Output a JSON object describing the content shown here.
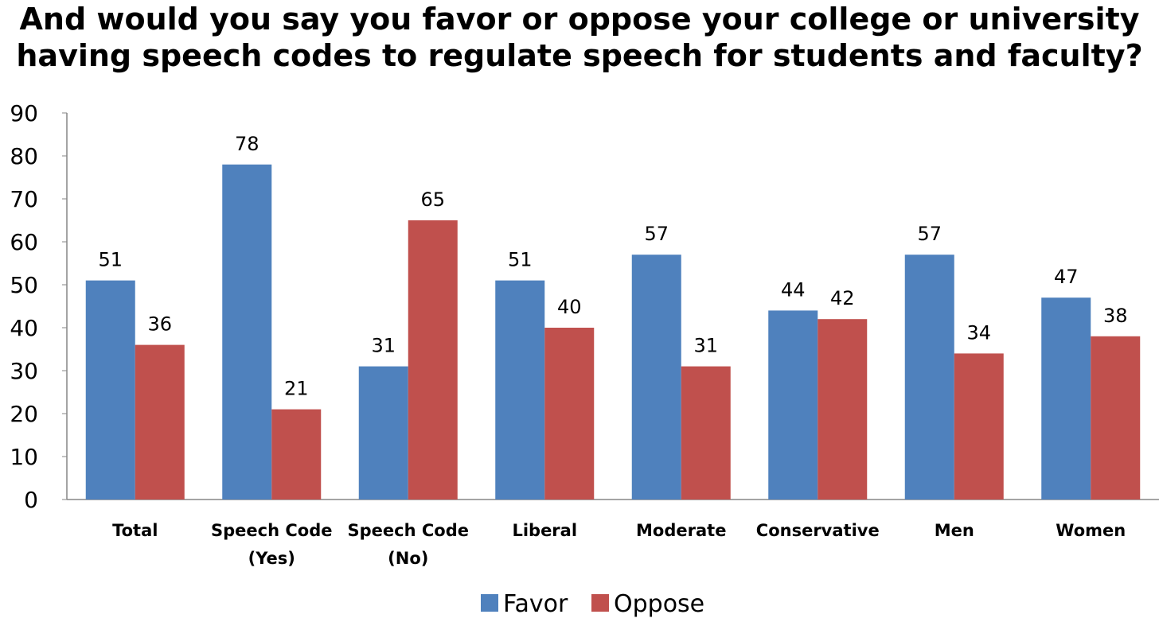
{
  "chart_data": {
    "type": "bar",
    "title_lines": [
      "And would you say you favor or oppose your college or university",
      "having speech codes to regulate speech for students and faculty?"
    ],
    "categories": [
      [
        "Total"
      ],
      [
        "Speech Code",
        "(Yes)"
      ],
      [
        "Speech Code",
        "(No)"
      ],
      [
        "Liberal"
      ],
      [
        "Moderate"
      ],
      [
        "Conservative"
      ],
      [
        "Men"
      ],
      [
        "Women"
      ]
    ],
    "series": [
      {
        "name": "Favor",
        "color": "#4f81bd",
        "values": [
          51,
          78,
          31,
          51,
          57,
          44,
          57,
          47
        ]
      },
      {
        "name": "Oppose",
        "color": "#c0504d",
        "values": [
          36,
          21,
          65,
          40,
          31,
          42,
          34,
          38
        ]
      }
    ],
    "ylim": [
      0,
      90
    ],
    "yticks": [
      0,
      10,
      20,
      30,
      40,
      50,
      60,
      70,
      80,
      90
    ],
    "xlabel": "",
    "ylabel": "",
    "grid": false,
    "legend_position": "bottom",
    "data_labels": true
  }
}
